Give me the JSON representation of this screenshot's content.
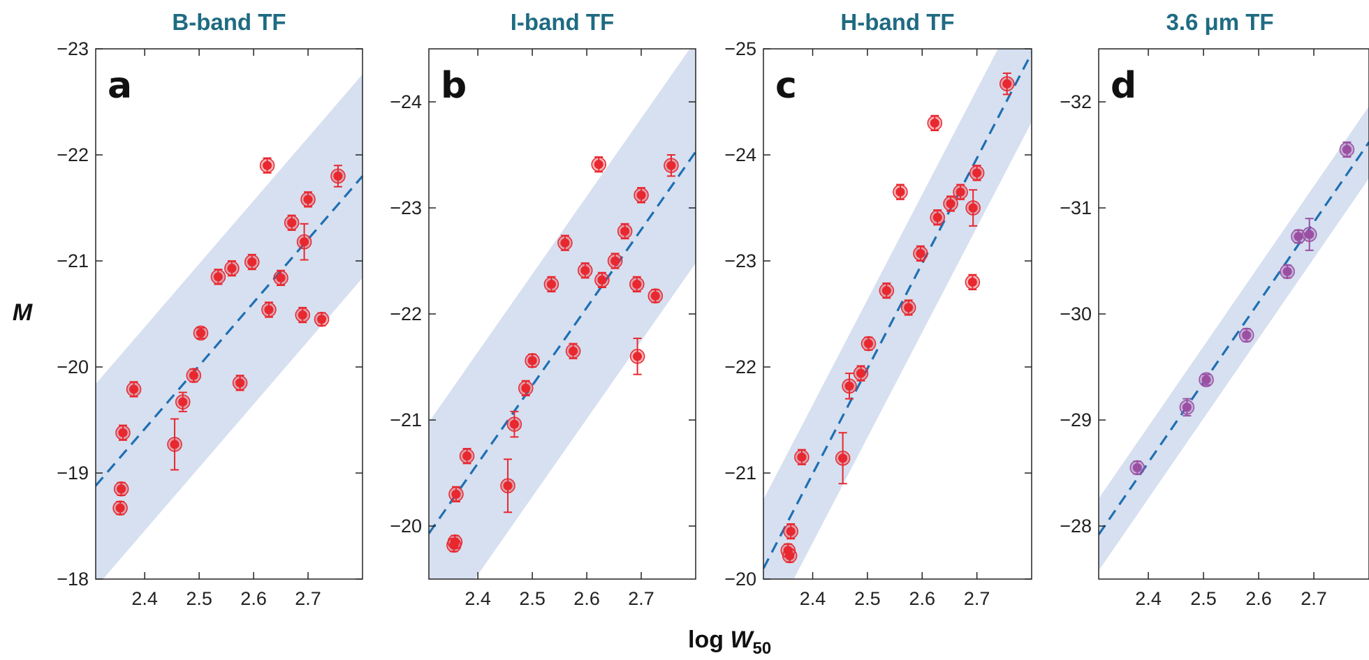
{
  "figure": {
    "ylabel": "M",
    "xlabel_main": "log ",
    "xlabel_var": "W",
    "xlabel_sub": "50"
  },
  "colors": {
    "band": "#d6e0f0",
    "fit_line": "#1f6fb2",
    "title": "#1f6b82",
    "point_red": "#e8272f",
    "point_purple": "#9b4fa3"
  },
  "chart_data": [
    {
      "type": "scatter",
      "title": "B-band TF",
      "letter": "a",
      "xlabel": "log W50",
      "ylabel": "M",
      "xlim": [
        2.31,
        2.8
      ],
      "ylim": [
        -18,
        -23
      ],
      "xticks": [
        2.4,
        2.5,
        2.6,
        2.7
      ],
      "xtick_labels": [
        "2.4",
        "2.5",
        "2.6",
        "2.7"
      ],
      "yticks": [
        -23,
        -22,
        -21,
        -20,
        -19,
        -18
      ],
      "ytick_labels": [
        "−23",
        "−22",
        "−21",
        "−20",
        "−19",
        "−18"
      ],
      "fit_line": {
        "x": [
          2.31,
          2.8
        ],
        "y": [
          -18.88,
          -21.8
        ]
      },
      "scatter_band": 0.96,
      "point_color": "#e8272f",
      "points": [
        {
          "x": 2.355,
          "y": -18.67,
          "err": 0.06
        },
        {
          "x": 2.357,
          "y": -18.85,
          "err": 0.06
        },
        {
          "x": 2.36,
          "y": -19.38,
          "err": 0.07
        },
        {
          "x": 2.38,
          "y": -19.79,
          "err": 0.07
        },
        {
          "x": 2.455,
          "y": -19.27,
          "err": 0.24
        },
        {
          "x": 2.47,
          "y": -19.67,
          "err": 0.09
        },
        {
          "x": 2.49,
          "y": -19.92,
          "err": 0.06
        },
        {
          "x": 2.503,
          "y": -20.32,
          "err": 0.05
        },
        {
          "x": 2.535,
          "y": -20.85,
          "err": 0.07
        },
        {
          "x": 2.56,
          "y": -20.93,
          "err": 0.07
        },
        {
          "x": 2.575,
          "y": -19.85,
          "err": 0.07
        },
        {
          "x": 2.597,
          "y": -20.99,
          "err": 0.07
        },
        {
          "x": 2.625,
          "y": -21.9,
          "err": 0.07
        },
        {
          "x": 2.628,
          "y": -20.54,
          "err": 0.07
        },
        {
          "x": 2.65,
          "y": -20.84,
          "err": 0.07
        },
        {
          "x": 2.67,
          "y": -21.36,
          "err": 0.07
        },
        {
          "x": 2.69,
          "y": -20.49,
          "err": 0.07
        },
        {
          "x": 2.693,
          "y": -21.18,
          "err": 0.17
        },
        {
          "x": 2.7,
          "y": -21.58,
          "err": 0.07
        },
        {
          "x": 2.725,
          "y": -20.45,
          "err": 0.06
        },
        {
          "x": 2.755,
          "y": -21.8,
          "err": 0.1
        }
      ]
    },
    {
      "type": "scatter",
      "title": "I-band TF",
      "letter": "b",
      "xlabel": "log W50",
      "ylabel": "M",
      "xlim": [
        2.31,
        2.8
      ],
      "ylim": [
        -19.5,
        -24.5
      ],
      "xticks": [
        2.4,
        2.5,
        2.6,
        2.7
      ],
      "xtick_labels": [
        "2.4",
        "2.5",
        "2.6",
        "2.7"
      ],
      "yticks": [
        -24,
        -23,
        -22,
        -21,
        -20
      ],
      "ytick_labels": [
        "−24",
        "−23",
        "−22",
        "−21",
        "−20"
      ],
      "fit_line": {
        "x": [
          2.31,
          2.8
        ],
        "y": [
          -19.93,
          -23.53
        ]
      },
      "scatter_band": 1.05,
      "point_color": "#e8272f",
      "points": [
        {
          "x": 2.356,
          "y": -19.82,
          "err": 0.06
        },
        {
          "x": 2.358,
          "y": -19.85,
          "err": 0.06
        },
        {
          "x": 2.36,
          "y": -20.3,
          "err": 0.07
        },
        {
          "x": 2.38,
          "y": -20.66,
          "err": 0.07
        },
        {
          "x": 2.455,
          "y": -20.38,
          "err": 0.25
        },
        {
          "x": 2.467,
          "y": -20.96,
          "err": 0.12
        },
        {
          "x": 2.488,
          "y": -21.3,
          "err": 0.07
        },
        {
          "x": 2.5,
          "y": -21.56,
          "err": 0.06
        },
        {
          "x": 2.535,
          "y": -22.28,
          "err": 0.07
        },
        {
          "x": 2.56,
          "y": -22.67,
          "err": 0.07
        },
        {
          "x": 2.575,
          "y": -21.65,
          "err": 0.07
        },
        {
          "x": 2.597,
          "y": -22.41,
          "err": 0.07
        },
        {
          "x": 2.622,
          "y": -23.41,
          "err": 0.07
        },
        {
          "x": 2.628,
          "y": -22.32,
          "err": 0.07
        },
        {
          "x": 2.652,
          "y": -22.5,
          "err": 0.07
        },
        {
          "x": 2.67,
          "y": -22.78,
          "err": 0.07
        },
        {
          "x": 2.692,
          "y": -22.28,
          "err": 0.07
        },
        {
          "x": 2.693,
          "y": -21.6,
          "err": 0.17
        },
        {
          "x": 2.7,
          "y": -23.12,
          "err": 0.07
        },
        {
          "x": 2.726,
          "y": -22.17,
          "err": 0.06
        },
        {
          "x": 2.755,
          "y": -23.4,
          "err": 0.1
        }
      ]
    },
    {
      "type": "scatter",
      "title": "H-band TF",
      "letter": "c",
      "xlabel": "log W50",
      "ylabel": "M",
      "xlim": [
        2.31,
        2.8
      ],
      "ylim": [
        -20,
        -25
      ],
      "xticks": [
        2.4,
        2.5,
        2.6,
        2.7
      ],
      "xtick_labels": [
        "2.4",
        "2.5",
        "2.6",
        "2.7"
      ],
      "yticks": [
        -25,
        -24,
        -23,
        -22,
        -21,
        -20
      ],
      "ytick_labels": [
        "−25",
        "−24",
        "−23",
        "−22",
        "−21",
        "−20"
      ],
      "fit_line": {
        "x": [
          2.31,
          2.8
        ],
        "y": [
          -20.1,
          -24.96
        ]
      },
      "scatter_band": 0.65,
      "point_color": "#e8272f",
      "points": [
        {
          "x": 2.355,
          "y": -20.27,
          "err": 0.06
        },
        {
          "x": 2.358,
          "y": -20.22,
          "err": 0.06
        },
        {
          "x": 2.36,
          "y": -20.45,
          "err": 0.07
        },
        {
          "x": 2.38,
          "y": -21.15,
          "err": 0.07
        },
        {
          "x": 2.455,
          "y": -21.14,
          "err": 0.24
        },
        {
          "x": 2.467,
          "y": -21.82,
          "err": 0.12
        },
        {
          "x": 2.488,
          "y": -21.94,
          "err": 0.07
        },
        {
          "x": 2.502,
          "y": -22.22,
          "err": 0.06
        },
        {
          "x": 2.535,
          "y": -22.72,
          "err": 0.07
        },
        {
          "x": 2.56,
          "y": -23.65,
          "err": 0.07
        },
        {
          "x": 2.575,
          "y": -22.56,
          "err": 0.07
        },
        {
          "x": 2.597,
          "y": -23.07,
          "err": 0.07
        },
        {
          "x": 2.623,
          "y": -24.3,
          "err": 0.07
        },
        {
          "x": 2.628,
          "y": -23.41,
          "err": 0.07
        },
        {
          "x": 2.652,
          "y": -23.54,
          "err": 0.07
        },
        {
          "x": 2.67,
          "y": -23.65,
          "err": 0.07
        },
        {
          "x": 2.692,
          "y": -22.8,
          "err": 0.07
        },
        {
          "x": 2.693,
          "y": -23.5,
          "err": 0.17
        },
        {
          "x": 2.7,
          "y": -23.83,
          "err": 0.07
        },
        {
          "x": 2.755,
          "y": -24.67,
          "err": 0.1
        }
      ]
    },
    {
      "type": "scatter",
      "title": "3.6 μm TF",
      "letter": "d",
      "xlabel": "log W50",
      "ylabel": "M",
      "xlim": [
        2.31,
        2.8
      ],
      "ylim": [
        -27.5,
        -32.5
      ],
      "xticks": [
        2.4,
        2.5,
        2.6,
        2.7
      ],
      "xtick_labels": [
        "2.4",
        "2.5",
        "2.6",
        "2.7"
      ],
      "yticks": [
        -32,
        -31,
        -30,
        -29,
        -28
      ],
      "ytick_labels": [
        "−32",
        "−31",
        "−30",
        "−29",
        "−28"
      ],
      "fit_line": {
        "x": [
          2.31,
          2.8
        ],
        "y": [
          -27.92,
          -31.62
        ]
      },
      "scatter_band": 0.34,
      "point_color": "#9b4fa3",
      "points": [
        {
          "x": 2.38,
          "y": -28.55,
          "err": 0.06
        },
        {
          "x": 2.47,
          "y": -29.12,
          "err": 0.08
        },
        {
          "x": 2.505,
          "y": -29.38,
          "err": 0.05
        },
        {
          "x": 2.578,
          "y": -29.8,
          "err": 0.06
        },
        {
          "x": 2.652,
          "y": -30.4,
          "err": 0.06
        },
        {
          "x": 2.672,
          "y": -30.73,
          "err": 0.06
        },
        {
          "x": 2.692,
          "y": -30.75,
          "err": 0.15
        },
        {
          "x": 2.76,
          "y": -31.55,
          "err": 0.07
        }
      ]
    }
  ]
}
